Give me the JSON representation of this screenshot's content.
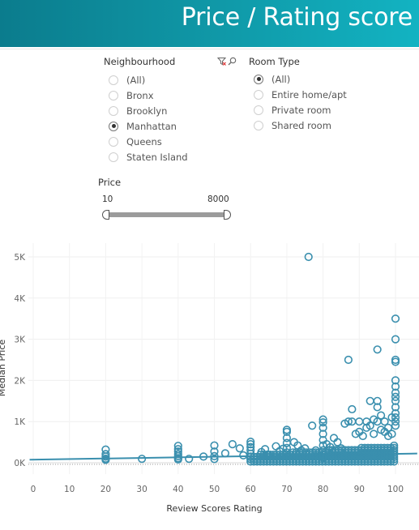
{
  "header": {
    "title": "Price / Rating score",
    "color": "#109aa9"
  },
  "filters": {
    "neighbourhood": {
      "title": "Neighbourhood",
      "options": [
        "(All)",
        "Bronx",
        "Brooklyn",
        "Manhattan",
        "Queens",
        "Staten Island"
      ],
      "selected": "Manhattan",
      "icons": [
        "clear-filter-icon",
        "search-icon"
      ]
    },
    "room_type": {
      "title": "Room Type",
      "options": [
        "(All)",
        "Entire home/apt",
        "Private room",
        "Shared room"
      ],
      "selected": "(All)"
    },
    "price": {
      "title": "Price",
      "min": "10",
      "max": "8000"
    }
  },
  "chart_data": {
    "type": "scatter",
    "xlabel": "Review Scores Rating",
    "ylabel": "Median Price",
    "xlim": [
      0,
      100
    ],
    "ylim": [
      0,
      5000
    ],
    "xticks": [
      "0",
      "10",
      "20",
      "30",
      "40",
      "50",
      "60",
      "70",
      "80",
      "90",
      "100"
    ],
    "yticks": [
      "0K",
      "1K",
      "2K",
      "3K",
      "4K",
      "5K"
    ],
    "grid": true,
    "marker_color": "#3a8fae",
    "trend_line": {
      "x": [
        0,
        100
      ],
      "y": [
        75,
        215
      ]
    },
    "points": [
      [
        20,
        320
      ],
      [
        20,
        210
      ],
      [
        20,
        150
      ],
      [
        20,
        100
      ],
      [
        20,
        70
      ],
      [
        30,
        95
      ],
      [
        40,
        410
      ],
      [
        40,
        330
      ],
      [
        40,
        270
      ],
      [
        40,
        210
      ],
      [
        40,
        160
      ],
      [
        40,
        110
      ],
      [
        40,
        80
      ],
      [
        43,
        95
      ],
      [
        47,
        150
      ],
      [
        50,
        420
      ],
      [
        50,
        270
      ],
      [
        50,
        160
      ],
      [
        50,
        90
      ],
      [
        53,
        230
      ],
      [
        55,
        450
      ],
      [
        57,
        350
      ],
      [
        58,
        180
      ],
      [
        60,
        510
      ],
      [
        60,
        450
      ],
      [
        60,
        380
      ],
      [
        60,
        300
      ],
      [
        60,
        220
      ],
      [
        60,
        150
      ],
      [
        60,
        90
      ],
      [
        63,
        260
      ],
      [
        64,
        330
      ],
      [
        65,
        180
      ],
      [
        67,
        400
      ],
      [
        68,
        280
      ],
      [
        69,
        340
      ],
      [
        70,
        800
      ],
      [
        70,
        750
      ],
      [
        70,
        600
      ],
      [
        70,
        480
      ],
      [
        70,
        360
      ],
      [
        70,
        250
      ],
      [
        70,
        150
      ],
      [
        72,
        500
      ],
      [
        73,
        420
      ],
      [
        74,
        300
      ],
      [
        75,
        350
      ],
      [
        76,
        5000
      ],
      [
        77,
        900
      ],
      [
        78,
        300
      ],
      [
        80,
        1050
      ],
      [
        80,
        980
      ],
      [
        80,
        850
      ],
      [
        80,
        700
      ],
      [
        80,
        550
      ],
      [
        80,
        420
      ],
      [
        80,
        300
      ],
      [
        80,
        200
      ],
      [
        80,
        120
      ],
      [
        81,
        450
      ],
      [
        82,
        380
      ],
      [
        83,
        600
      ],
      [
        84,
        500
      ],
      [
        85,
        350
      ],
      [
        86,
        950
      ],
      [
        87,
        2500
      ],
      [
        87,
        1000
      ],
      [
        88,
        1300
      ],
      [
        88,
        1000
      ],
      [
        89,
        700
      ],
      [
        90,
        1000
      ],
      [
        90,
        750
      ],
      [
        91,
        650
      ],
      [
        92,
        1000
      ],
      [
        92,
        850
      ],
      [
        93,
        1500
      ],
      [
        93,
        900
      ],
      [
        94,
        1050
      ],
      [
        94,
        700
      ],
      [
        95,
        2750
      ],
      [
        95,
        1500
      ],
      [
        95,
        1350
      ],
      [
        95,
        1000
      ],
      [
        96,
        1150
      ],
      [
        96,
        800
      ],
      [
        97,
        1000
      ],
      [
        97,
        750
      ],
      [
        98,
        850
      ],
      [
        98,
        650
      ],
      [
        99,
        1100
      ],
      [
        99,
        700
      ],
      [
        100,
        3500
      ],
      [
        100,
        3000
      ],
      [
        100,
        2500
      ],
      [
        100,
        2450
      ],
      [
        100,
        2000
      ],
      [
        100,
        1850
      ],
      [
        100,
        1700
      ],
      [
        100,
        1600
      ],
      [
        100,
        1500
      ],
      [
        100,
        1350
      ],
      [
        100,
        1200
      ],
      [
        100,
        1100
      ],
      [
        100,
        1000
      ],
      [
        100,
        900
      ]
    ]
  }
}
